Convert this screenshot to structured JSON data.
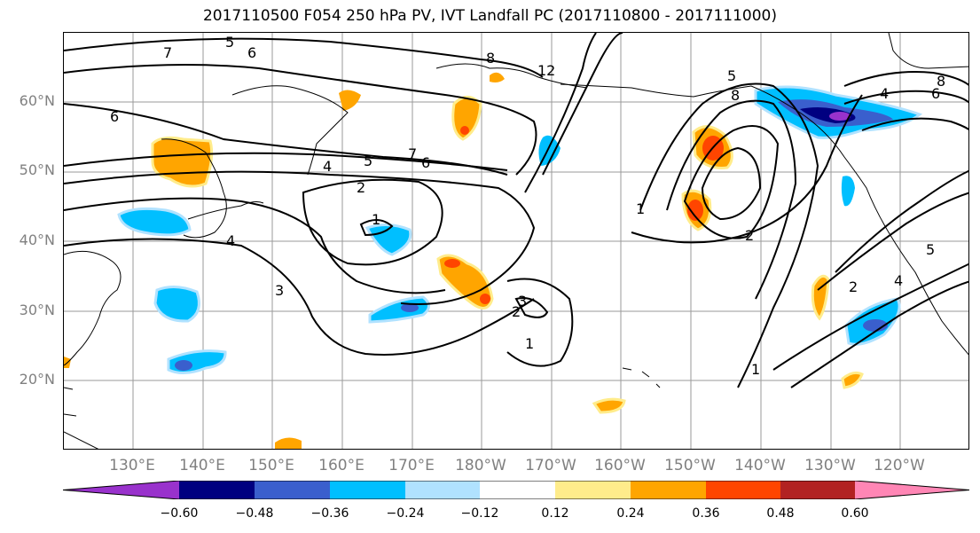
{
  "title": "2017110500 F054 250 hPa PV, IVT Landfall PC (2017110800 - 2017111000)",
  "lat_labels": [
    "60°N",
    "50°N",
    "40°N",
    "30°N",
    "20°N"
  ],
  "lon_labels": [
    "130°E",
    "140°E",
    "150°E",
    "160°E",
    "170°E",
    "180°W",
    "170°W",
    "160°W",
    "150°W",
    "140°W",
    "130°W",
    "120°W"
  ],
  "contour_labels": [
    "5",
    "6",
    "7",
    "4",
    "5",
    "7",
    "6",
    "2",
    "1",
    "4",
    "3",
    "3",
    "2",
    "1",
    "8",
    "12",
    "5",
    "8",
    "1",
    "2",
    "4",
    "6",
    "8",
    "1",
    "2",
    "5",
    "4",
    "6"
  ],
  "colorbar": {
    "ticks": [
      "−0.60",
      "−0.48",
      "−0.36",
      "−0.24",
      "−0.12",
      "0.12",
      "0.24",
      "0.36",
      "0.48",
      "0.60"
    ],
    "colors": [
      "#9932cc",
      "#000080",
      "#3a5fcd",
      "#00bfff",
      "#b0e2ff",
      "#ffffff",
      "#ffec8b",
      "#ffa500",
      "#ff4500",
      "#b22222",
      "#ff86b5"
    ]
  }
}
